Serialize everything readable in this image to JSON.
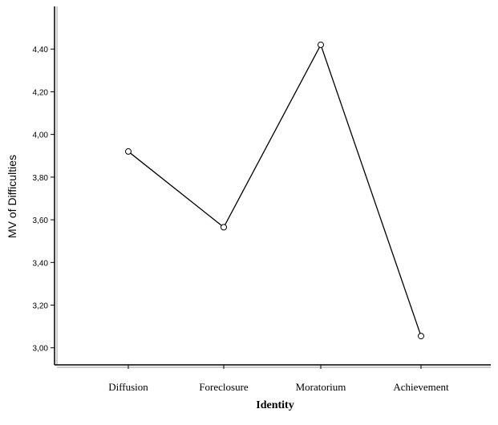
{
  "chart_data": {
    "type": "line",
    "categories": [
      "Diffusion",
      "Foreclosure",
      "Moratorium",
      "Achievement"
    ],
    "values": [
      3.92,
      3.565,
      4.42,
      3.055
    ],
    "xlabel": "Identity",
    "ylabel": "MV of Difficulties",
    "ylim": [
      2.92,
      4.6
    ],
    "yticks": [
      3.0,
      3.2,
      3.4,
      3.6,
      3.8,
      4.0,
      4.2,
      4.4
    ],
    "ytick_labels": [
      "3,00",
      "3,20",
      "3,40",
      "3,60",
      "3,80",
      "4,00",
      "4,20",
      "4,40"
    ],
    "grid": false,
    "marker": "open-circle",
    "line_color": "#000000"
  }
}
